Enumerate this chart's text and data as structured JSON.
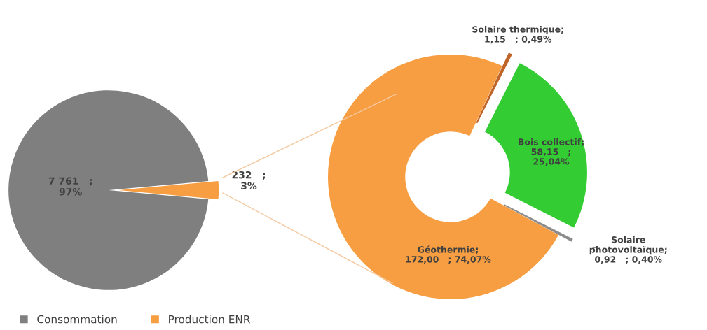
{
  "chart_data": [
    {
      "type": "pie",
      "categories": [
        "Consommation",
        "Production ENR"
      ],
      "values": [
        7761,
        232
      ],
      "colors": [
        "#7f7f7f",
        "#f79d42"
      ],
      "value_labels": [
        "7 761   ;\n97%",
        "232   ;\n3%"
      ],
      "legend": "bottom"
    },
    {
      "type": "donut",
      "categories": [
        "Géothermie",
        "Solaire thermique",
        "Bois collectif",
        "Solaire photovoltaïque"
      ],
      "values": [
        172.0,
        1.15,
        58.15,
        0.92
      ],
      "colors": [
        "#f79d42",
        "#c0652a",
        "#33cc33",
        "#8c8c8c"
      ],
      "value_labels": [
        ";\n172,00   ; 74,07%",
        ";\n1,15   ; 0,49%",
        ";\n58,15   ;\n25,04%",
        ";\n0,92   ; 0,40%"
      ],
      "legend": false
    }
  ]
}
